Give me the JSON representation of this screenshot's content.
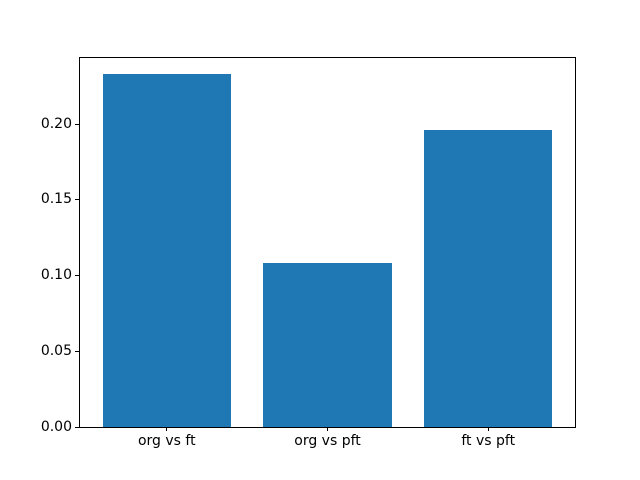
{
  "figure": {
    "background_color": "#ffffff"
  },
  "chart_data": {
    "type": "bar",
    "title": "",
    "xlabel": "",
    "ylabel": "",
    "categories": [
      "org vs ft",
      "org vs pft",
      "ft vs pft"
    ],
    "values": [
      0.233,
      0.108,
      0.196
    ],
    "bar_color": "#1f77b4",
    "axis_color": "#000000",
    "text_color": "#000000",
    "ylim": [
      0,
      0.2436
    ],
    "yticks": [
      0.0,
      0.05,
      0.1,
      0.15,
      0.2
    ],
    "ytick_labels": [
      "0.00",
      "0.05",
      "0.10",
      "0.15",
      "0.20"
    ],
    "grid": false,
    "legend_position": "none"
  }
}
